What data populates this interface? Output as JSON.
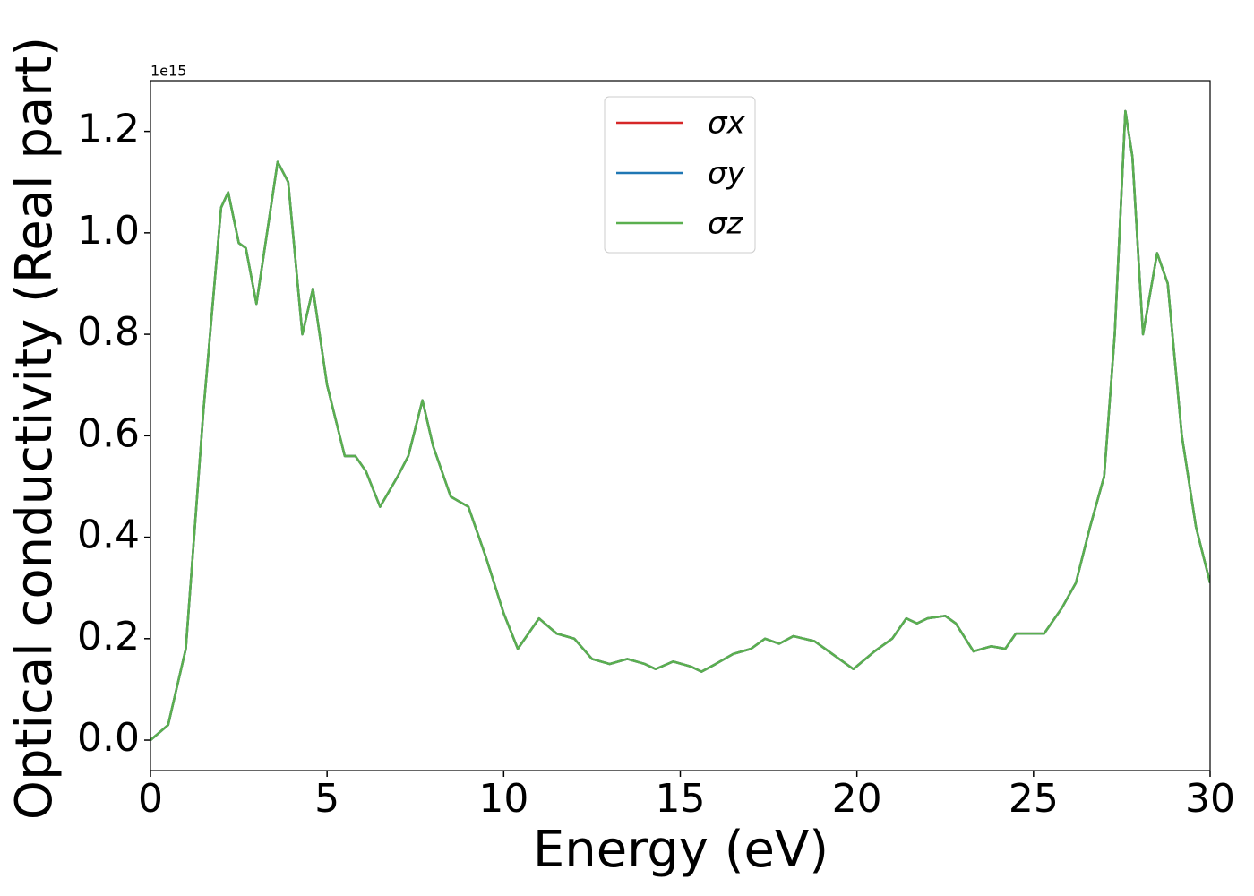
{
  "chart_data": {
    "type": "line",
    "y_offset_label": "1e15",
    "xlabel": "Energy (eV)",
    "ylabel": "Optical conductivity (Real part)",
    "xlim": [
      0,
      30
    ],
    "ylim": [
      -0.06,
      1.3
    ],
    "xticks": [
      0,
      5,
      10,
      15,
      20,
      25,
      30
    ],
    "yticks": [
      {
        "value": 0,
        "label": "0.0"
      },
      {
        "value": 0.2,
        "label": "0.2"
      },
      {
        "value": 0.4,
        "label": "0.4"
      },
      {
        "value": 0.6,
        "label": "0.6"
      },
      {
        "value": 0.8,
        "label": "0.8"
      },
      {
        "value": 1.0,
        "label": "1.0"
      },
      {
        "value": 1.2,
        "label": "1.2"
      }
    ],
    "legend": "upper center",
    "x": [
      0,
      0.5,
      1.0,
      1.5,
      2.0,
      2.2,
      2.5,
      2.7,
      3.0,
      3.3,
      3.6,
      3.9,
      4.3,
      4.6,
      5.0,
      5.5,
      5.8,
      6.1,
      6.5,
      7.0,
      7.3,
      7.7,
      8.0,
      8.5,
      9.0,
      9.5,
      10.0,
      10.4,
      11.0,
      11.5,
      12.0,
      12.5,
      13.0,
      13.5,
      14.0,
      14.3,
      14.8,
      15.3,
      15.6,
      16.0,
      16.5,
      17.0,
      17.4,
      17.8,
      18.2,
      18.8,
      19.2,
      19.9,
      20.5,
      21.0,
      21.4,
      21.7,
      22.0,
      22.5,
      22.8,
      23.3,
      23.8,
      24.2,
      24.5,
      25.0,
      25.3,
      25.8,
      26.2,
      26.6,
      27.0,
      27.3,
      27.6,
      27.8,
      28.1,
      28.5,
      28.8,
      29.2,
      29.6,
      30.0
    ],
    "series": [
      {
        "name": "σx",
        "color": "#d62728",
        "values": [
          0.0,
          0.03,
          0.18,
          0.65,
          1.05,
          1.08,
          0.98,
          0.97,
          0.86,
          1.0,
          1.14,
          1.1,
          0.8,
          0.89,
          0.7,
          0.56,
          0.56,
          0.53,
          0.46,
          0.52,
          0.56,
          0.67,
          0.58,
          0.48,
          0.46,
          0.36,
          0.25,
          0.18,
          0.24,
          0.21,
          0.2,
          0.16,
          0.15,
          0.16,
          0.15,
          0.14,
          0.155,
          0.145,
          0.135,
          0.15,
          0.17,
          0.18,
          0.2,
          0.19,
          0.205,
          0.195,
          0.175,
          0.14,
          0.175,
          0.2,
          0.24,
          0.23,
          0.24,
          0.245,
          0.23,
          0.175,
          0.185,
          0.18,
          0.21,
          0.21,
          0.21,
          0.26,
          0.31,
          0.42,
          0.52,
          0.8,
          1.24,
          1.15,
          0.8,
          0.96,
          0.9,
          0.6,
          0.42,
          0.31
        ]
      },
      {
        "name": "σy",
        "color": "#1f77b4",
        "values": [
          0.0,
          0.03,
          0.18,
          0.65,
          1.05,
          1.08,
          0.98,
          0.97,
          0.86,
          1.0,
          1.14,
          1.1,
          0.8,
          0.89,
          0.7,
          0.56,
          0.56,
          0.53,
          0.46,
          0.52,
          0.56,
          0.67,
          0.58,
          0.48,
          0.46,
          0.36,
          0.25,
          0.18,
          0.24,
          0.21,
          0.2,
          0.16,
          0.15,
          0.16,
          0.15,
          0.14,
          0.155,
          0.145,
          0.135,
          0.15,
          0.17,
          0.18,
          0.2,
          0.19,
          0.205,
          0.195,
          0.175,
          0.14,
          0.175,
          0.2,
          0.24,
          0.23,
          0.24,
          0.245,
          0.23,
          0.175,
          0.185,
          0.18,
          0.21,
          0.21,
          0.21,
          0.26,
          0.31,
          0.42,
          0.52,
          0.8,
          1.24,
          1.15,
          0.8,
          0.96,
          0.9,
          0.6,
          0.42,
          0.31
        ]
      },
      {
        "name": "σz",
        "color": "#5aaf4f",
        "values": [
          0.0,
          0.03,
          0.18,
          0.65,
          1.05,
          1.08,
          0.98,
          0.97,
          0.86,
          1.0,
          1.14,
          1.1,
          0.8,
          0.89,
          0.7,
          0.56,
          0.56,
          0.53,
          0.46,
          0.52,
          0.56,
          0.67,
          0.58,
          0.48,
          0.46,
          0.36,
          0.25,
          0.18,
          0.24,
          0.21,
          0.2,
          0.16,
          0.15,
          0.16,
          0.15,
          0.14,
          0.155,
          0.145,
          0.135,
          0.15,
          0.17,
          0.18,
          0.2,
          0.19,
          0.205,
          0.195,
          0.175,
          0.14,
          0.175,
          0.2,
          0.24,
          0.23,
          0.24,
          0.245,
          0.23,
          0.175,
          0.185,
          0.18,
          0.21,
          0.21,
          0.21,
          0.26,
          0.31,
          0.42,
          0.52,
          0.8,
          1.24,
          1.15,
          0.8,
          0.96,
          0.9,
          0.6,
          0.42,
          0.31
        ]
      }
    ]
  }
}
